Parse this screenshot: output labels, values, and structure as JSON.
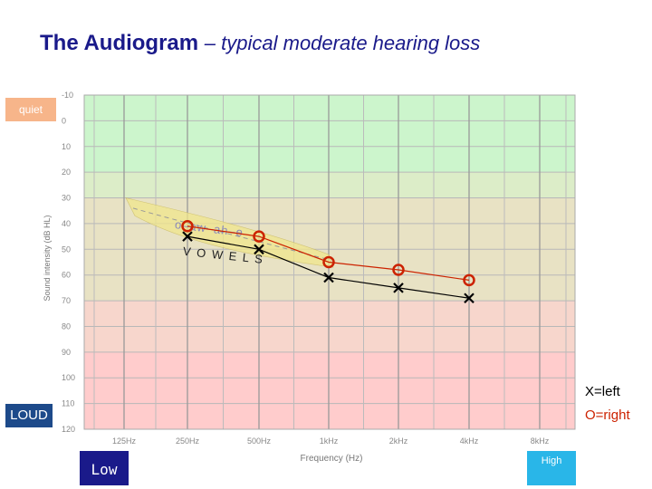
{
  "title": {
    "main": "The Audiogram",
    "sub": "– typical moderate hearing loss"
  },
  "labels": {
    "quiet": "quiet",
    "loud": "LOUD",
    "low": "Low",
    "high": "High"
  },
  "legend": {
    "left": "X=left",
    "right": "O=right"
  },
  "banana": {
    "vowels": "V O W E L S",
    "speech": "o–aw–ah–e"
  },
  "chart_data": {
    "type": "line",
    "title": "The Audiogram – typical moderate hearing loss",
    "xlabel": "Frequency (Hz)",
    "ylabel": "Sound intensity (dB HL)",
    "x_ticks": [
      "125Hz",
      "250Hz",
      "500Hz",
      "1kHz",
      "2kHz",
      "4kHz",
      "8kHz"
    ],
    "y_ticks": [
      -10,
      0,
      10,
      20,
      30,
      40,
      50,
      60,
      70,
      80,
      90,
      100,
      110,
      120
    ],
    "ylim": [
      -10,
      120
    ],
    "y_inverted": true,
    "grid": true,
    "bands": [
      {
        "from": -10,
        "to": 20,
        "color": "#ccf5cc"
      },
      {
        "from": 20,
        "to": 30,
        "color": "#dcedc8"
      },
      {
        "from": 30,
        "to": 70,
        "color": "#e8e2c4"
      },
      {
        "from": 70,
        "to": 90,
        "color": "#f7d6cc"
      },
      {
        "from": 90,
        "to": 120,
        "color": "#ffcccc"
      }
    ],
    "series": [
      {
        "name": "left",
        "marker": "X",
        "color": "#000000",
        "x": [
          "250Hz",
          "500Hz",
          "1kHz",
          "2kHz",
          "4kHz"
        ],
        "values": [
          45,
          50,
          61,
          65,
          69
        ]
      },
      {
        "name": "right",
        "marker": "O",
        "color": "#cc2200",
        "x": [
          "250Hz",
          "500Hz",
          "1kHz",
          "2kHz",
          "4kHz"
        ],
        "values": [
          41,
          45,
          55,
          58,
          62
        ]
      }
    ]
  }
}
